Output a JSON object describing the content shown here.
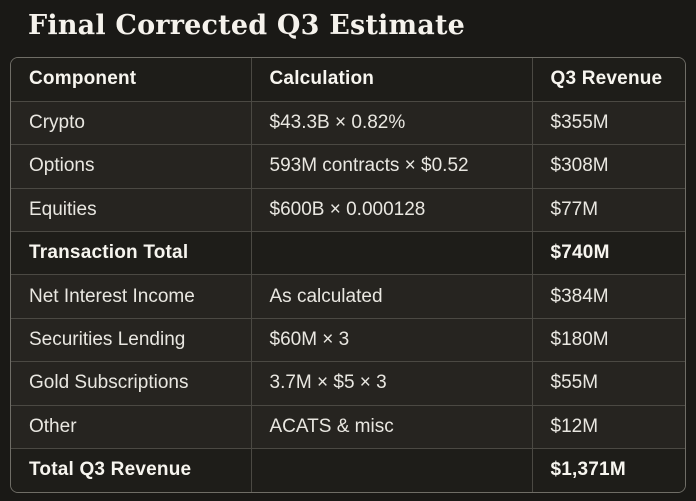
{
  "title": "Final Corrected Q3 Estimate",
  "colors": {
    "page_background": "#1a1916",
    "row_background": "#262420",
    "emphasis_row_background": "#1e1d19",
    "outer_border": "#6f6d66",
    "inner_border": "#4b4943",
    "body_text": "#e9e7e1",
    "emphasis_text": "#f7f5ef"
  },
  "table": {
    "columns": [
      {
        "label": "Component"
      },
      {
        "label": "Calculation"
      },
      {
        "label": "Q3 Revenue"
      }
    ],
    "rows": [
      {
        "component": "Crypto",
        "calculation": "$43.3B × 0.82%",
        "revenue": "$355M"
      },
      {
        "component": "Options",
        "calculation": "593M contracts × $0.52",
        "revenue": "$308M"
      },
      {
        "component": "Equities",
        "calculation": "$600B × 0.000128",
        "revenue": "$77M"
      },
      {
        "component": "Transaction Total",
        "calculation": "",
        "revenue": "$740M"
      },
      {
        "component": "Net Interest Income",
        "calculation": "As calculated",
        "revenue": "$384M"
      },
      {
        "component": "Securities Lending",
        "calculation": "$60M × 3",
        "revenue": "$180M"
      },
      {
        "component": "Gold Subscriptions",
        "calculation": "3.7M × $5 × 3",
        "revenue": "$55M"
      },
      {
        "component": "Other",
        "calculation": "ACATS & misc",
        "revenue": "$12M"
      },
      {
        "component": "Total Q3 Revenue",
        "calculation": "",
        "revenue": "$1,371M"
      }
    ]
  }
}
